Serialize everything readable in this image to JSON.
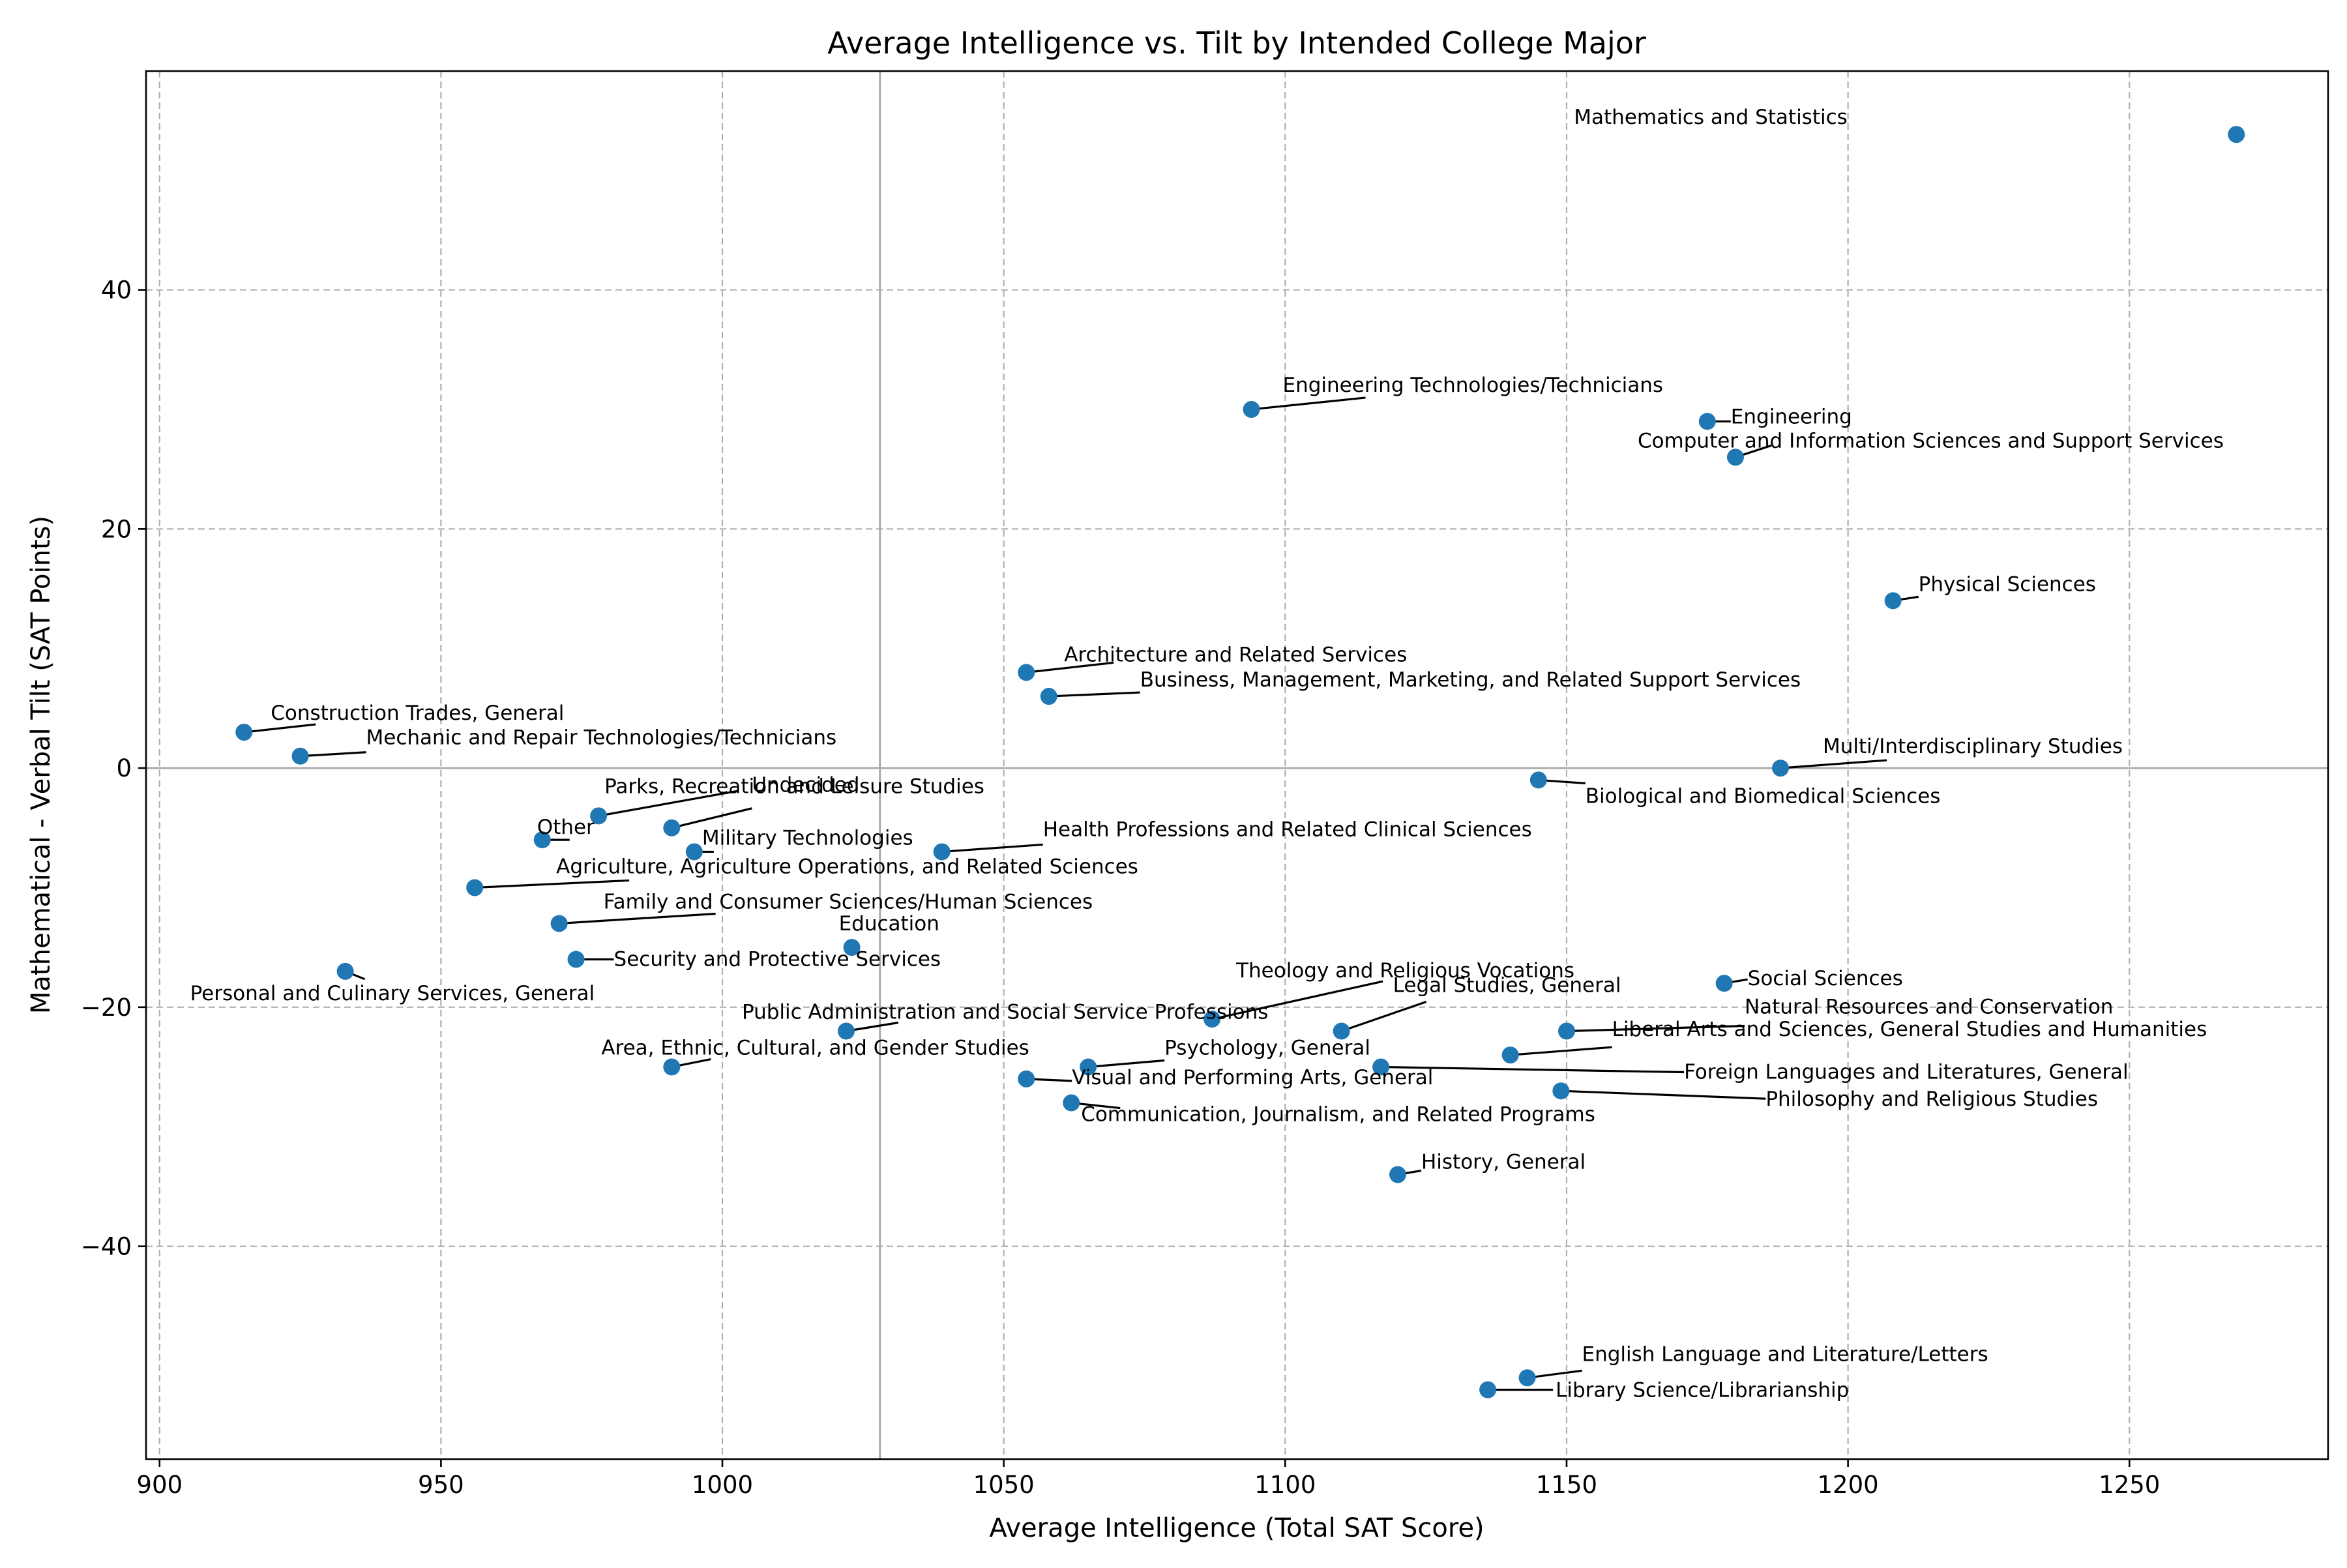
{
  "chart_data": {
    "type": "scatter",
    "title": "Average Intelligence vs. Tilt by Intended College Major",
    "xlabel": "Average Intelligence (Total SAT Score)",
    "ylabel": "Mathematical - Verbal Tilt (SAT Points)",
    "xlim": [
      897.6,
      1285.3
    ],
    "ylim": [
      -57.8,
      58.3
    ],
    "xticks": [
      900,
      950,
      1000,
      1050,
      1100,
      1150,
      1200,
      1250
    ],
    "yticks": [
      -40,
      -20,
      0,
      20,
      40
    ],
    "grid": true,
    "reference_lines": {
      "x": 1028,
      "y": 0
    },
    "color": "#1f77b4",
    "points": [
      {
        "label": "Mathematics and Statistics",
        "x": 1269,
        "y": 53
      },
      {
        "label": "Engineering Technologies/Technicians",
        "x": 1094,
        "y": 30
      },
      {
        "label": "Engineering",
        "x": 1175,
        "y": 29
      },
      {
        "label": "Computer and Information Sciences and Support Services",
        "x": 1180,
        "y": 26
      },
      {
        "label": "Physical Sciences",
        "x": 1208,
        "y": 14
      },
      {
        "label": "Architecture and Related Services",
        "x": 1054,
        "y": 8
      },
      {
        "label": "Business, Management, Marketing, and Related Support Services",
        "x": 1058,
        "y": 6
      },
      {
        "label": "Construction Trades, General",
        "x": 915,
        "y": 3
      },
      {
        "label": "Mechanic and Repair Technologies/Technicians",
        "x": 925,
        "y": 1
      },
      {
        "label": "Multi/Interdisciplinary Studies",
        "x": 1188,
        "y": 0
      },
      {
        "label": "Biological and Biomedical Sciences",
        "x": 1145,
        "y": -1
      },
      {
        "label": "Parks, Recreation and Leisure Studies",
        "x": 978,
        "y": -4
      },
      {
        "label": "Undecided",
        "x": 991,
        "y": -5
      },
      {
        "label": "Other",
        "x": 968,
        "y": -6
      },
      {
        "label": "Military Technologies",
        "x": 995,
        "y": -7
      },
      {
        "label": "Health Professions and Related Clinical Sciences",
        "x": 1039,
        "y": -7
      },
      {
        "label": "Agriculture, Agriculture Operations, and Related Sciences",
        "x": 956,
        "y": -10
      },
      {
        "label": "Family and Consumer Sciences/Human Sciences",
        "x": 971,
        "y": -13
      },
      {
        "label": "Education",
        "x": 1023,
        "y": -15
      },
      {
        "label": "Security and Protective Services",
        "x": 974,
        "y": -16
      },
      {
        "label": "Personal and Culinary Services, General",
        "x": 933,
        "y": -17
      },
      {
        "label": "Social Sciences",
        "x": 1178,
        "y": -18
      },
      {
        "label": "Theology and Religious Vocations",
        "x": 1087,
        "y": -21
      },
      {
        "label": "Legal Studies, General",
        "x": 1110,
        "y": -22
      },
      {
        "label": "Natural Resources and Conservation",
        "x": 1150,
        "y": -22
      },
      {
        "label": "Public Administration and Social Service Professions",
        "x": 1022,
        "y": -22
      },
      {
        "label": "Liberal Arts and Sciences, General Studies and Humanities",
        "x": 1140,
        "y": -24
      },
      {
        "label": "Area, Ethnic, Cultural, and Gender Studies",
        "x": 991,
        "y": -25
      },
      {
        "label": "Psychology, General",
        "x": 1065,
        "y": -25
      },
      {
        "label": "Foreign Languages and Literatures, General",
        "x": 1117,
        "y": -25
      },
      {
        "label": "Visual and Performing Arts, General",
        "x": 1054,
        "y": -26
      },
      {
        "label": "Philosophy and Religious Studies",
        "x": 1149,
        "y": -27
      },
      {
        "label": "Communication, Journalism, and Related Programs",
        "x": 1062,
        "y": -28
      },
      {
        "label": "History, General",
        "x": 1120,
        "y": -34
      },
      {
        "label": "English Language and Literature/Letters",
        "x": 1143,
        "y": -51
      },
      {
        "label": "Library Science/Librarianship",
        "x": 1136,
        "y": -52
      }
    ]
  }
}
